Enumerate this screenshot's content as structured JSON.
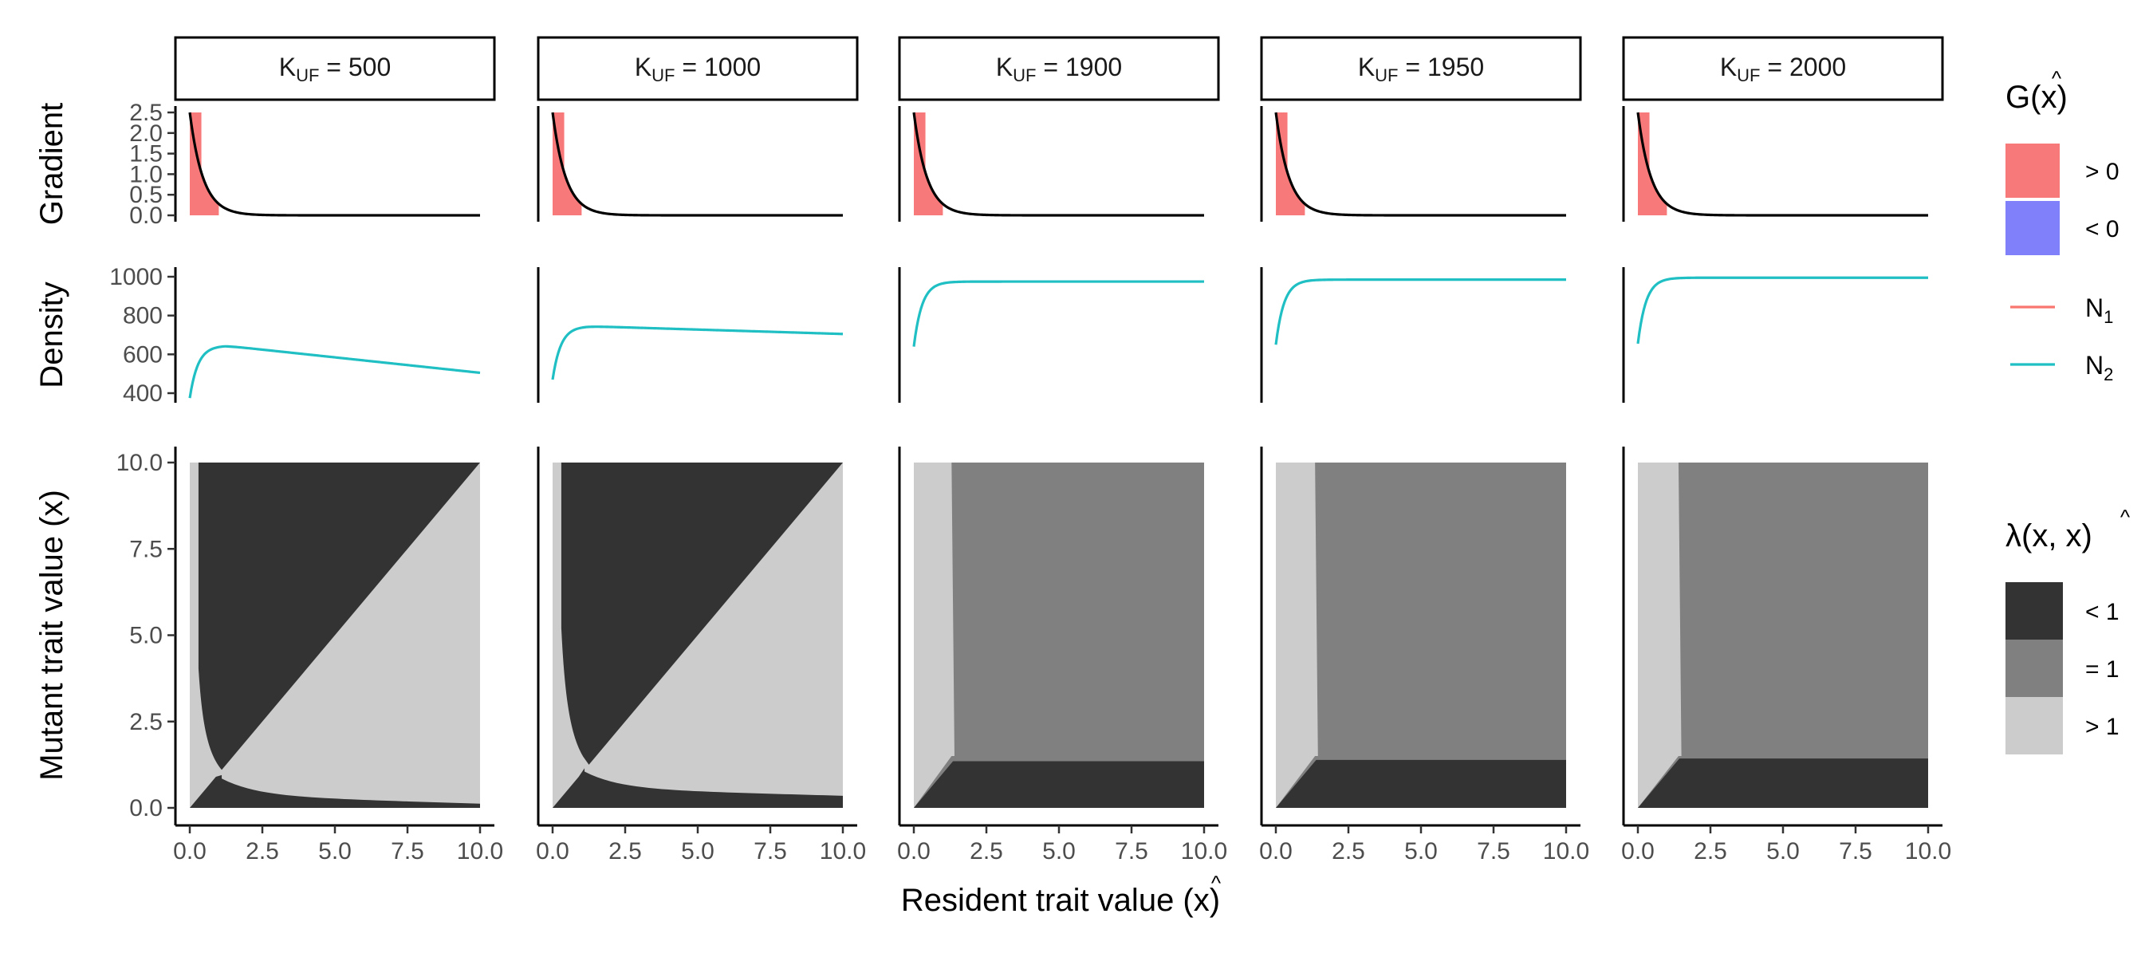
{
  "chart_data": {
    "type": "faceted",
    "strip_label_prefix": "K",
    "strip_label_subscript": "UF",
    "strip_label_infix": " = ",
    "facets": [
      {
        "K_UF": 500,
        "strip": "500",
        "density_start": 375,
        "density_peak": 645,
        "density_end": 505
      },
      {
        "K_UF": 1000,
        "strip": "1000",
        "density_start": 470,
        "density_peak": 745,
        "density_end": 705
      },
      {
        "K_UF": 1900,
        "strip": "1900",
        "density_start": 640,
        "density_peak": 975,
        "density_end": 975
      },
      {
        "K_UF": 1950,
        "strip": "1950",
        "density_start": 650,
        "density_peak": 985,
        "density_end": 985
      },
      {
        "K_UF": 2000,
        "strip": "2000",
        "density_start": 655,
        "density_peak": 995,
        "density_end": 995
      }
    ],
    "x_axis": {
      "label_main": "Resident trait value (",
      "label_symbol": "x",
      "label_hat": "^",
      "label_close": ")",
      "range": [
        0,
        10
      ],
      "ticks": [
        0,
        2.5,
        5,
        7.5,
        10
      ],
      "tick_labels": [
        "0.0",
        "2.5",
        "5.0",
        "7.5",
        "10.0"
      ]
    },
    "rows": {
      "gradient": {
        "ylabel": "Gradient",
        "range": [
          0,
          2.5
        ],
        "ticks": [
          0,
          0.5,
          1,
          1.5,
          2,
          2.5
        ],
        "tick_labels": [
          "0.0",
          "0.5",
          "1.0",
          "1.5",
          "2.0",
          "2.5"
        ],
        "curve": "G = 2.5 * exp(-2.2 * x)",
        "line_color": "#000000"
      },
      "density": {
        "ylabel": "Density",
        "range": [
          400,
          1000
        ],
        "ticks": [
          400,
          600,
          800,
          1000
        ],
        "tick_labels": [
          "400",
          "600",
          "800",
          "1000"
        ],
        "line_color": "#1fbfc4"
      },
      "pip": {
        "ylabel": "Mutant trait value (x)",
        "range": [
          0,
          10
        ],
        "ticks": [
          0,
          2.5,
          5,
          7.5,
          10
        ],
        "tick_labels": [
          "0.0",
          "2.5",
          "5.0",
          "7.5",
          "10.0"
        ]
      }
    },
    "grid": false,
    "legend_gradient": {
      "title_prefix": "G(",
      "title_symbol": "x",
      "title_suffix": ")",
      "items": [
        {
          "label": "> 0",
          "color": "#f8797a"
        },
        {
          "label": "< 0",
          "color": "#8080fb"
        }
      ]
    },
    "legend_density": {
      "items": [
        {
          "label": "N",
          "sub": "1",
          "color": "#f8766d"
        },
        {
          "label": "N",
          "sub": "2",
          "color": "#1fbfc4"
        }
      ]
    },
    "legend_lambda": {
      "title_prefix": "λ(x, ",
      "title_symbol": "x",
      "title_suffix": ")",
      "items": [
        {
          "label": "< 1",
          "color": "#333333"
        },
        {
          "label": "= 1",
          "color": "#808080"
        },
        {
          "label": "> 1",
          "color": "#cccccc"
        }
      ]
    }
  }
}
